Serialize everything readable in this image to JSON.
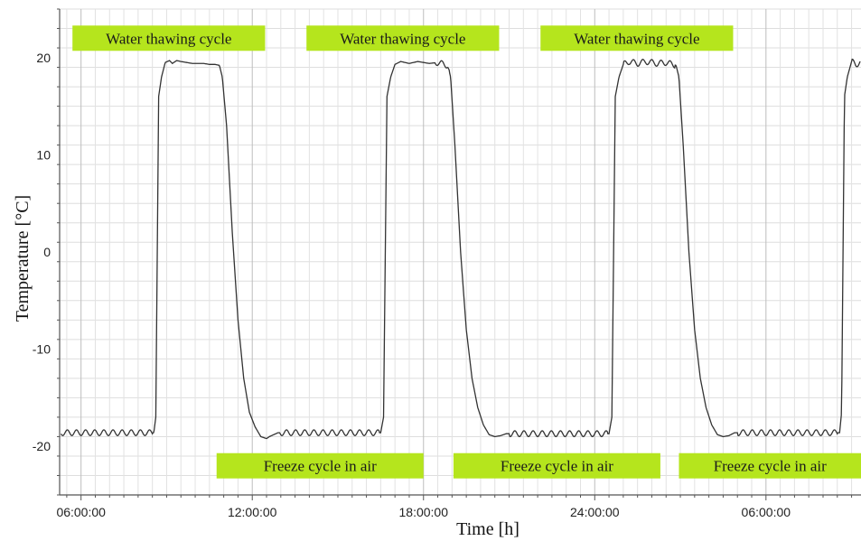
{
  "chart_data": {
    "type": "line",
    "title": "",
    "xlabel": "Time [h]",
    "ylabel": "Temperature [°C]",
    "xlim": [
      5.25,
      33.33
    ],
    "ylim": [
      -25,
      25
    ],
    "grid": true,
    "x_ticks": [
      {
        "x": 6,
        "label": "06:00:00"
      },
      {
        "x": 12,
        "label": "12:00:00"
      },
      {
        "x": 18,
        "label": "18:00:00"
      },
      {
        "x": 24,
        "label": "24:00:00"
      },
      {
        "x": 30,
        "label": "06:00:00"
      }
    ],
    "y_ticks": [
      {
        "y": 20,
        "label": "20"
      },
      {
        "y": 10,
        "label": "10"
      },
      {
        "y": 0,
        "label": "0"
      },
      {
        "y": -10,
        "label": "-10"
      },
      {
        "y": -20,
        "label": "-20"
      }
    ],
    "series": [
      {
        "x": [
          5.3,
          8.55,
          8.62,
          8.72,
          8.82,
          8.95,
          9.1,
          9.2,
          9.35,
          9.5,
          9.7,
          9.9,
          10.1,
          10.3,
          10.5,
          10.7,
          10.85,
          10.95,
          11.1,
          11.3,
          11.5,
          11.7,
          11.9,
          12.1,
          12.3,
          12.5,
          12.6,
          12.75,
          12.9,
          16.5,
          16.6,
          16.72,
          16.85,
          17.0,
          17.2,
          17.5,
          17.8,
          18.2,
          18.5,
          18.85,
          18.95,
          19.1,
          19.3,
          19.5,
          19.7,
          19.9,
          20.1,
          20.3,
          20.5,
          20.7,
          20.9,
          24.5,
          24.6,
          24.72,
          24.85,
          25.0,
          25.2,
          25.5,
          25.8,
          26.2,
          26.5,
          26.85,
          26.95,
          27.1,
          27.3,
          27.5,
          27.7,
          27.9,
          28.1,
          28.3,
          28.5,
          28.7,
          28.9,
          32.58,
          32.65,
          32.75,
          32.85,
          33.0,
          33.15,
          33.3
        ],
        "y": [
          -18.6,
          -18.6,
          -17.0,
          16.0,
          18.0,
          19.5,
          19.7,
          19.4,
          19.7,
          19.6,
          19.5,
          19.4,
          19.4,
          19.4,
          19.3,
          19.3,
          19.2,
          18.0,
          13.0,
          2.0,
          -7.0,
          -13.0,
          -16.5,
          -18.0,
          -19.0,
          -19.2,
          -19.0,
          -18.8,
          -18.6,
          -18.6,
          -17.0,
          16.0,
          18.0,
          19.3,
          19.6,
          19.4,
          19.6,
          19.4,
          19.5,
          19.2,
          18.0,
          11.0,
          0.0,
          -8.0,
          -13.0,
          -16.0,
          -17.8,
          -18.8,
          -19.0,
          -18.9,
          -18.7,
          -18.7,
          -17.0,
          16.0,
          18.0,
          19.3,
          19.6,
          19.4,
          19.6,
          19.4,
          19.5,
          19.2,
          18.0,
          11.0,
          0.0,
          -8.0,
          -13.0,
          -16.0,
          -17.8,
          -18.8,
          -19.0,
          -18.9,
          -18.6,
          -18.6,
          -16.5,
          16.0,
          18.0,
          19.6,
          19.3,
          19.5
        ],
        "wave_x_ranges": [
          [
            5.3,
            8.5
          ],
          [
            12.95,
            16.45
          ],
          [
            18.4,
            18.9
          ],
          [
            21.0,
            24.45
          ],
          [
            25.0,
            26.8
          ],
          [
            29.0,
            32.5
          ],
          [
            33.0,
            33.3
          ]
        ],
        "color": "#333333"
      }
    ],
    "annotations": [
      {
        "text": "Water thawing cycle",
        "x_from": 5.7,
        "x_to": 12.45,
        "y": 22.0
      },
      {
        "text": "Water thawing cycle",
        "x_from": 13.9,
        "x_to": 20.65,
        "y": 22.0
      },
      {
        "text": "Water thawing cycle",
        "x_from": 22.1,
        "x_to": 28.85,
        "y": 22.0
      },
      {
        "text": "Freeze cycle in air",
        "x_from": 10.75,
        "x_to": 18.0,
        "y": -22.0
      },
      {
        "text": "Freeze cycle in air",
        "x_from": 19.05,
        "x_to": 26.3,
        "y": -22.0
      },
      {
        "text": "Freeze cycle in air",
        "x_from": 26.95,
        "x_to": 33.33,
        "y": -22.0
      }
    ],
    "annotation_color": "#b5e51d"
  }
}
